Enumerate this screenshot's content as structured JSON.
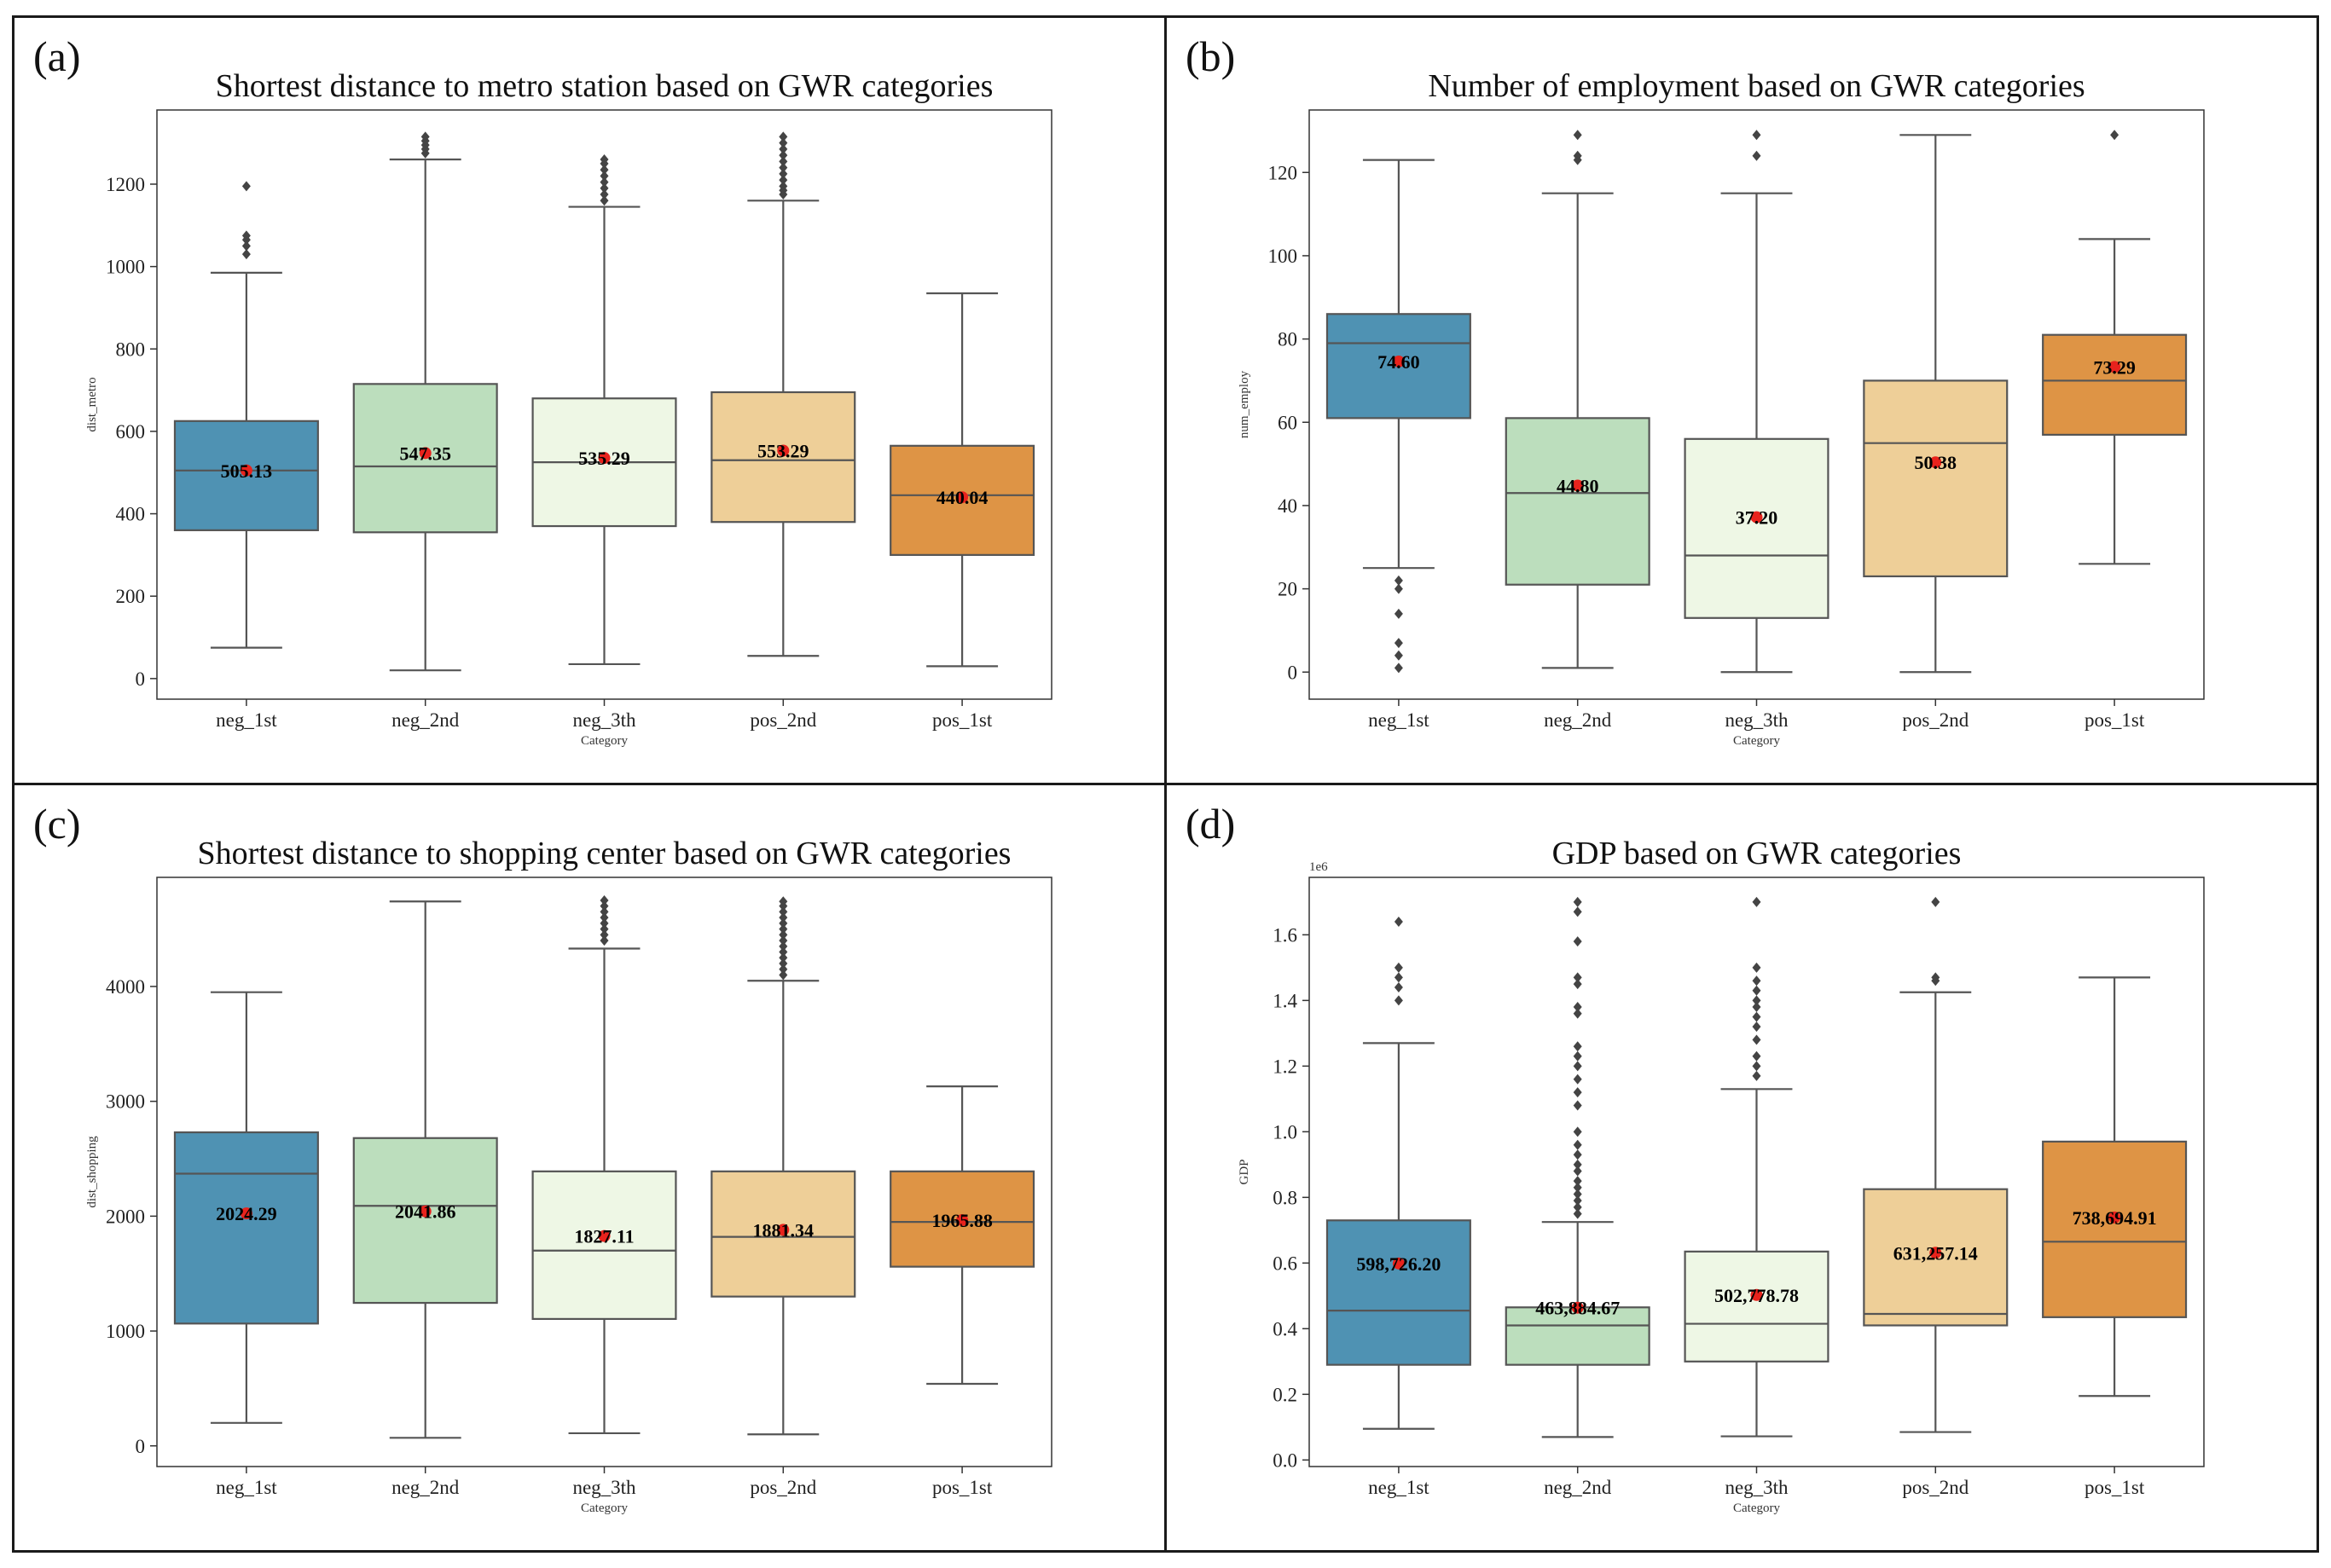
{
  "colors": {
    "neg_1st": "#4f92b3",
    "neg_2nd": "#bcdebd",
    "neg_3th": "#eef7e5",
    "pos_2nd": "#eecf98",
    "pos_1st": "#de9445",
    "line": "#555555",
    "mean_dot": "#e8231d",
    "flier": "#444444"
  },
  "chart_data": [
    {
      "letter": "(a)",
      "type": "box",
      "title": "Shortest distance to metro station based on GWR categories",
      "xlabel": "Category",
      "ylabel": "dist_metro",
      "scale_label": "",
      "ylim": [
        -50,
        1380
      ],
      "yticks": [
        0,
        200,
        400,
        600,
        800,
        1000,
        1200
      ],
      "ytick_labels": [
        "0",
        "200",
        "400",
        "600",
        "800",
        "1000",
        "1200"
      ],
      "categories": [
        "neg_1st",
        "neg_2nd",
        "neg_3th",
        "pos_2nd",
        "pos_1st"
      ],
      "boxes": [
        {
          "q1": 360,
          "median": 505,
          "q3": 625,
          "whislo": 75,
          "whishi": 985,
          "mean": 505.13,
          "mean_label": "505.13",
          "fliers": [
            1030,
            1050,
            1065,
            1075,
            1195
          ]
        },
        {
          "q1": 355,
          "median": 515,
          "q3": 715,
          "whislo": 20,
          "whishi": 1260,
          "mean": 547.35,
          "mean_label": "547.35",
          "fliers": [
            1275,
            1285,
            1295,
            1305,
            1315
          ]
        },
        {
          "q1": 370,
          "median": 525,
          "q3": 680,
          "whislo": 35,
          "whishi": 1145,
          "mean": 535.29,
          "mean_label": "535.29",
          "fliers": [
            1160,
            1175,
            1190,
            1205,
            1220,
            1235,
            1250,
            1260
          ]
        },
        {
          "q1": 380,
          "median": 530,
          "q3": 695,
          "whislo": 55,
          "whishi": 1160,
          "mean": 553.29,
          "mean_label": "553.29",
          "fliers": [
            1175,
            1185,
            1195,
            1210,
            1225,
            1240,
            1255,
            1270,
            1285,
            1300,
            1315
          ]
        },
        {
          "q1": 300,
          "median": 445,
          "q3": 565,
          "whislo": 30,
          "whishi": 935,
          "mean": 440.04,
          "mean_label": "440.04",
          "fliers": []
        }
      ]
    },
    {
      "letter": "(b)",
      "type": "box",
      "title": "Number of employment based on GWR categories",
      "xlabel": "Category",
      "ylabel": "num_employ",
      "scale_label": "",
      "ylim": [
        -6.5,
        135
      ],
      "yticks": [
        0,
        20,
        40,
        60,
        80,
        100,
        120
      ],
      "ytick_labels": [
        "0",
        "20",
        "40",
        "60",
        "80",
        "100",
        "120"
      ],
      "categories": [
        "neg_1st",
        "neg_2nd",
        "neg_3th",
        "pos_2nd",
        "pos_1st"
      ],
      "boxes": [
        {
          "q1": 61,
          "median": 79,
          "q3": 86,
          "whislo": 25,
          "whishi": 123,
          "mean": 74.6,
          "mean_label": "74.60",
          "fliers": [
            1,
            4,
            7,
            14,
            20,
            22
          ]
        },
        {
          "q1": 21,
          "median": 43,
          "q3": 61,
          "whislo": 1,
          "whishi": 115,
          "mean": 44.8,
          "mean_label": "44.80",
          "fliers": [
            123,
            124,
            129
          ]
        },
        {
          "q1": 13,
          "median": 28,
          "q3": 56,
          "whislo": 0,
          "whishi": 115,
          "mean": 37.2,
          "mean_label": "37.20",
          "fliers": [
            124,
            129
          ]
        },
        {
          "q1": 23,
          "median": 55,
          "q3": 70,
          "whislo": 0,
          "whishi": 129,
          "mean": 50.38,
          "mean_label": "50.38",
          "fliers": []
        },
        {
          "q1": 57,
          "median": 70,
          "q3": 81,
          "whislo": 26,
          "whishi": 104,
          "mean": 73.29,
          "mean_label": "73.29",
          "fliers": [
            129
          ]
        }
      ]
    },
    {
      "letter": "(c)",
      "type": "box",
      "title": "Shortest distance to shopping center based on GWR categories",
      "xlabel": "Category",
      "ylabel": "dist_shopping",
      "scale_label": "",
      "ylim": [
        -180,
        4950
      ],
      "yticks": [
        0,
        1000,
        2000,
        3000,
        4000
      ],
      "ytick_labels": [
        "0",
        "1000",
        "2000",
        "3000",
        "4000"
      ],
      "categories": [
        "neg_1st",
        "neg_2nd",
        "neg_3th",
        "pos_2nd",
        "pos_1st"
      ],
      "boxes": [
        {
          "q1": 1065,
          "median": 2370,
          "q3": 2730,
          "whislo": 200,
          "whishi": 3950,
          "mean": 2024.29,
          "mean_label": "2024.29",
          "fliers": []
        },
        {
          "q1": 1245,
          "median": 2090,
          "q3": 2680,
          "whislo": 70,
          "whishi": 4740,
          "mean": 2041.86,
          "mean_label": "2041.86",
          "fliers": []
        },
        {
          "q1": 1105,
          "median": 1700,
          "q3": 2390,
          "whislo": 110,
          "whishi": 4330,
          "mean": 1827.11,
          "mean_label": "1827.11",
          "fliers": [
            4400,
            4450,
            4500,
            4550,
            4600,
            4650,
            4700,
            4750
          ]
        },
        {
          "q1": 1300,
          "median": 1820,
          "q3": 2390,
          "whislo": 100,
          "whishi": 4050,
          "mean": 1881.34,
          "mean_label": "1881.34",
          "fliers": [
            4100,
            4150,
            4200,
            4250,
            4300,
            4350,
            4400,
            4450,
            4500,
            4550,
            4600,
            4650,
            4700,
            4740
          ]
        },
        {
          "q1": 1560,
          "median": 1950,
          "q3": 2390,
          "whislo": 540,
          "whishi": 3130,
          "mean": 1965.88,
          "mean_label": "1965.88",
          "fliers": []
        }
      ]
    },
    {
      "letter": "(d)",
      "type": "box",
      "title": "GDP based on GWR categories",
      "xlabel": "Category",
      "ylabel": "GDP",
      "scale_label": "1e6",
      "ylim": [
        -20000,
        1775000
      ],
      "yticks": [
        0,
        200000,
        400000,
        600000,
        800000,
        1000000,
        1200000,
        1400000,
        1600000
      ],
      "ytick_labels": [
        "0.0",
        "0.2",
        "0.4",
        "0.6",
        "0.8",
        "1.0",
        "1.2",
        "1.4",
        "1.6"
      ],
      "categories": [
        "neg_1st",
        "neg_2nd",
        "neg_3th",
        "pos_2nd",
        "pos_1st"
      ],
      "boxes": [
        {
          "q1": 290000,
          "median": 455000,
          "q3": 730000,
          "whislo": 95000,
          "whishi": 1270000,
          "mean": 598726.2,
          "mean_label": "598,726.20",
          "fliers": [
            1400000,
            1440000,
            1470000,
            1500000,
            1640000
          ]
        },
        {
          "q1": 290000,
          "median": 410000,
          "q3": 465000,
          "whislo": 70000,
          "whishi": 725000,
          "mean": 463884.67,
          "mean_label": "463,884.67",
          "fliers": [
            750000,
            770000,
            790000,
            810000,
            830000,
            850000,
            880000,
            900000,
            930000,
            960000,
            1000000,
            1080000,
            1120000,
            1160000,
            1200000,
            1230000,
            1260000,
            1360000,
            1380000,
            1450000,
            1470000,
            1580000,
            1670000,
            1700000
          ]
        },
        {
          "q1": 300000,
          "median": 415000,
          "q3": 635000,
          "whislo": 72000,
          "whishi": 1130000,
          "mean": 502778.78,
          "mean_label": "502,778.78",
          "fliers": [
            1170000,
            1200000,
            1230000,
            1280000,
            1320000,
            1350000,
            1380000,
            1400000,
            1430000,
            1460000,
            1500000,
            1700000
          ]
        },
        {
          "q1": 410000,
          "median": 445000,
          "q3": 825000,
          "whislo": 85000,
          "whishi": 1425000,
          "mean": 631257.14,
          "mean_label": "631,257.14",
          "fliers": [
            1460000,
            1470000,
            1700000
          ]
        },
        {
          "q1": 435000,
          "median": 665000,
          "q3": 970000,
          "whislo": 195000,
          "whishi": 1470000,
          "mean": 738694.91,
          "mean_label": "738,694.91",
          "fliers": []
        }
      ]
    }
  ]
}
